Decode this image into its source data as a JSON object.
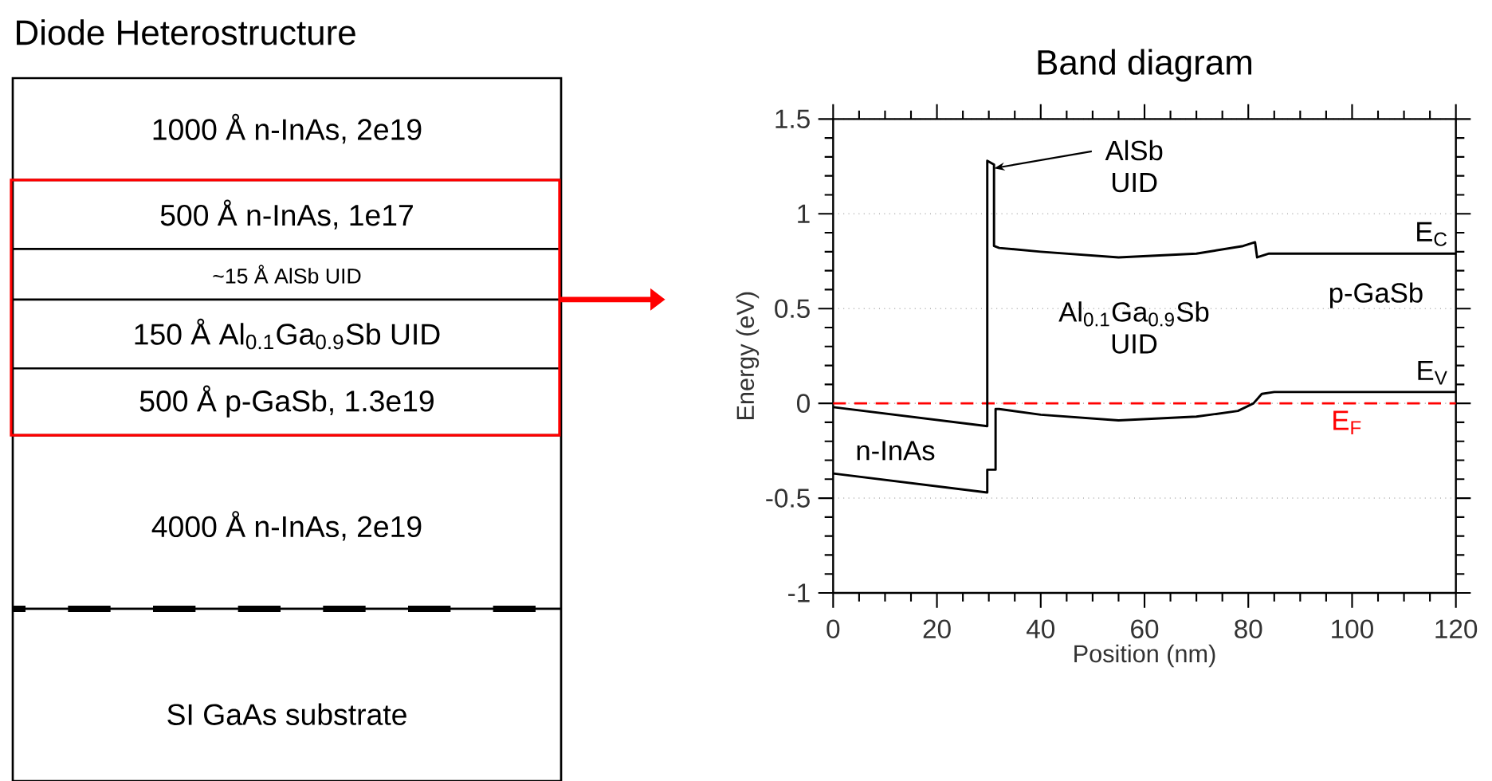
{
  "chart_data": [
    {
      "type": "other",
      "title": "Diode Heterostructure",
      "annotations": [
        "1000 Å n-InAs, 2e19",
        "500 Å n-InAs, 1e17",
        "~15 Å AlSb UID",
        "150 Å Al$_{0.1}$Ga$_{0.9}$Sb UID",
        "500 Å p-GaSb, 1.3e19",
        "4000 Å n-InAs, 2e19",
        "SI GaAs substrate"
      ]
    },
    {
      "type": "line",
      "title": "Band diagram",
      "xlabel": "Position (nm)",
      "ylabel": "Energy (eV)",
      "xlim": [
        0,
        120
      ],
      "xticks": [
        0,
        20,
        40,
        60,
        80,
        100,
        120
      ],
      "ylim": [
        -1,
        1.5
      ],
      "yticks": [
        -1,
        -0.5,
        0,
        0.5,
        1,
        1.5
      ],
      "grid": "y",
      "line_style": "solid",
      "legend": "right",
      "series": [
        {
          "name": "E$_{C}$",
          "color": "#000000",
          "x": [
            0,
            29.7,
            29.7,
            31.0,
            31.0,
            32,
            40,
            55,
            70,
            79,
            81.3,
            81.7,
            84,
            120
          ],
          "values": [
            -0.02,
            -0.12,
            1.28,
            1.26,
            0.83,
            0.82,
            0.8,
            0.77,
            0.79,
            0.83,
            0.85,
            0.77,
            0.79,
            0.79
          ]
        },
        {
          "name": "E$_{V}$",
          "color": "#000000",
          "x": [
            0,
            29.7,
            29.7,
            31.3,
            31.3,
            32,
            40,
            55,
            70,
            78,
            81,
            82.6,
            85,
            120
          ],
          "values": [
            -0.37,
            -0.47,
            -0.35,
            -0.35,
            -0.03,
            -0.03,
            -0.06,
            -0.09,
            -0.07,
            -0.04,
            0,
            0.05,
            0.06,
            0.06
          ]
        }
      ],
      "ref_lines": [
        {
          "axis": "y",
          "value": 0,
          "label": "E$_{F}$",
          "color": "#ff0000",
          "line_style": "dashed"
        }
      ],
      "annotations": [
        {
          "text": "AlSb UID",
          "x": 31,
          "y": 1.24
        },
        "n-InAs",
        "Al$_{0.1}$Ga$_{0.9}$Sb UID",
        "p-GaSb"
      ]
    }
  ]
}
